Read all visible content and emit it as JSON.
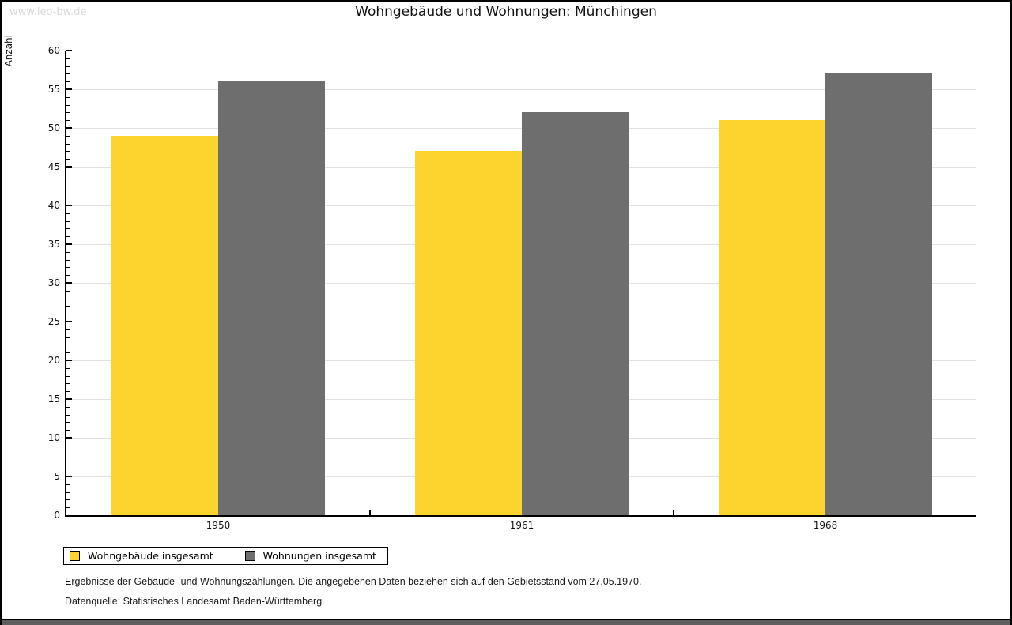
{
  "window": {
    "watermark": "www.leo-bw.de"
  },
  "chart_data": {
    "type": "bar",
    "title": "Wohngebäude und Wohnungen: Münchingen",
    "ylabel": "Anzahl",
    "xlabel": "",
    "ylim": [
      0,
      60
    ],
    "ytick_major": 5,
    "ytick_minor": 1,
    "grid": true,
    "legend_position": "bottom-left",
    "categories": [
      "1950",
      "1961",
      "1968"
    ],
    "series": [
      {
        "name": "Wohngebäude insgesamt",
        "color": "#fdd32e",
        "values": [
          49,
          47,
          51
        ]
      },
      {
        "name": "Wohnungen insgesamt",
        "color": "#6e6e6e",
        "values": [
          56,
          52,
          57
        ]
      }
    ]
  },
  "footer": {
    "line1": "Ergebnisse der Gebäude- und Wohnungszählungen. Die angegebenen Daten beziehen sich auf den Gebietsstand vom 27.05.1970.",
    "line2": "Datenquelle: Statistisches Landesamt Baden-Württemberg."
  },
  "colors": {
    "series_wohngebaeude": "#fdd32e",
    "series_wohnungen": "#6e6e6e",
    "gridline": "#e2e2e2",
    "axis": "#000000",
    "watermark_text": "#d9d9d9",
    "bottom_strip": "#5f5f60"
  }
}
